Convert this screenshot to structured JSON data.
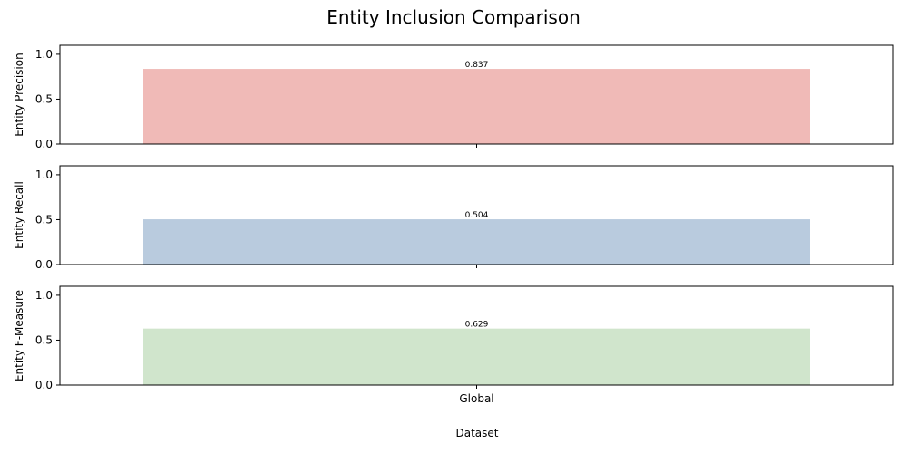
{
  "chart_data": {
    "type": "bar",
    "title": "Entity Inclusion Comparison",
    "xlabel": "Dataset",
    "categories": [
      "Global"
    ],
    "subplots": [
      {
        "ylabel": "Entity Precision",
        "values": [
          0.837
        ],
        "value_labels": [
          "0.837"
        ],
        "color": "#f0bab7",
        "ylim": [
          0,
          1.1
        ],
        "yticks": [
          "0.0",
          "0.5",
          "1.0"
        ]
      },
      {
        "ylabel": "Entity Recall",
        "values": [
          0.504
        ],
        "value_labels": [
          "0.504"
        ],
        "color": "#b9cbde",
        "ylim": [
          0,
          1.1
        ],
        "yticks": [
          "0.0",
          "0.5",
          "1.0"
        ]
      },
      {
        "ylabel": "Entity F-Measure",
        "values": [
          0.629
        ],
        "value_labels": [
          "0.629"
        ],
        "color": "#d0e5cc",
        "ylim": [
          0,
          1.1
        ],
        "yticks": [
          "0.0",
          "0.5",
          "1.0"
        ]
      }
    ],
    "grid": false,
    "legend": "none"
  }
}
